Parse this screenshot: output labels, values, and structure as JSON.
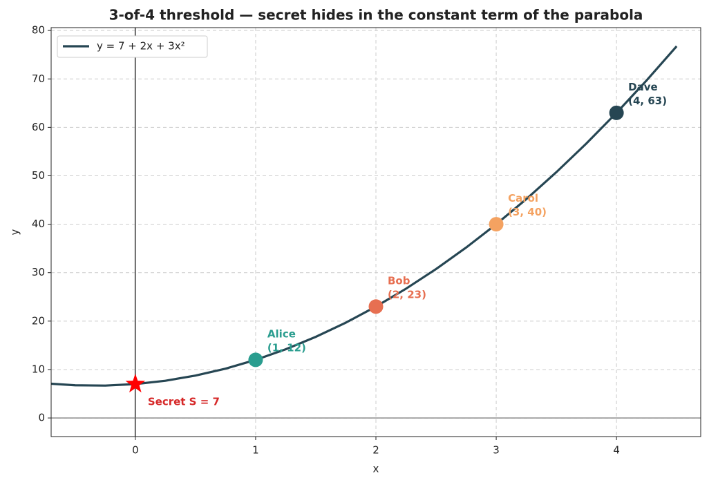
{
  "chart_data": {
    "type": "line",
    "title": "3-of-4 threshold — secret hides in the constant term of the parabola",
    "x_label": "x",
    "y_label": "y",
    "x": [
      -0.7,
      -0.5,
      -0.25,
      0,
      0.25,
      0.5,
      0.75,
      1,
      1.25,
      1.5,
      1.75,
      2,
      2.25,
      2.5,
      2.75,
      3,
      3.25,
      3.5,
      3.75,
      4,
      4.25,
      4.5
    ],
    "series": [
      {
        "name": "y = 7 + 2x + 3x²",
        "color": "#264653",
        "values": [
          7.07,
          6.75,
          6.6875,
          7,
          7.6875,
          8.75,
          10.1875,
          12,
          14.1875,
          16.75,
          19.6875,
          23,
          26.6875,
          30.75,
          35.1875,
          40,
          45.1875,
          50.75,
          56.6875,
          63,
          69.6875,
          76.75
        ]
      }
    ],
    "points": [
      {
        "label": "Alice",
        "coords": "(1, 12)",
        "x": 1,
        "y": 12,
        "color": "#2a9d8f"
      },
      {
        "label": "Bob",
        "coords": "(2, 23)",
        "x": 2,
        "y": 23,
        "color": "#e76f51"
      },
      {
        "label": "Carol",
        "coords": "(3, 40)",
        "x": 3,
        "y": 40,
        "color": "#f4a261"
      },
      {
        "label": "Dave",
        "coords": "(4, 63)",
        "x": 4,
        "y": 63,
        "color": "#264653"
      }
    ],
    "secret": {
      "label": "Secret S = 7",
      "x": 0,
      "y": 7,
      "color": "#ff0000",
      "text_color": "#d62828"
    },
    "vlines": [
      0
    ],
    "hlines": [
      0
    ],
    "xlim": [
      -0.7,
      4.7
    ],
    "ylim": [
      -3.84,
      80.59
    ],
    "xticks": [
      0,
      1,
      2,
      3,
      4
    ],
    "yticks": [
      0,
      10,
      20,
      30,
      40,
      50,
      60,
      70,
      80
    ],
    "grid": true,
    "legend": "upper left"
  }
}
